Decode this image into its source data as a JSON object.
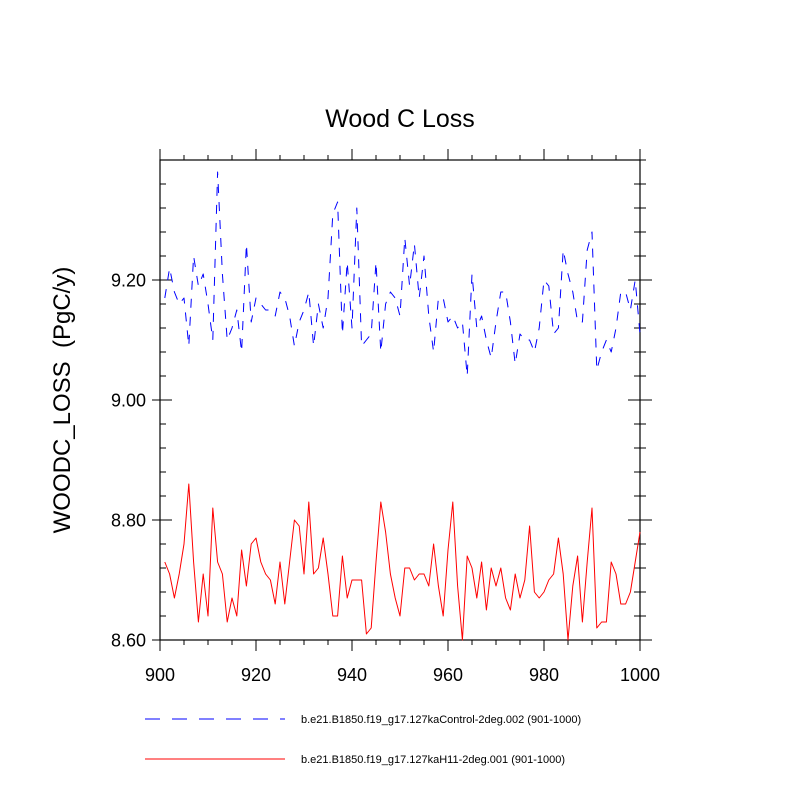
{
  "chart_data": {
    "type": "line",
    "title": "Wood C Loss",
    "xlabel": "",
    "ylabel": "WOODC_LOSS  (PgC/y)",
    "xlim": [
      900,
      1000
    ],
    "ylim": [
      8.6,
      9.4
    ],
    "x_ticks": [
      900,
      920,
      940,
      960,
      980,
      1000
    ],
    "x_tick_labels": [
      "900",
      "920",
      "940",
      "960",
      "980",
      "1000"
    ],
    "y_ticks": [
      8.6,
      8.8,
      9.0,
      9.2
    ],
    "y_tick_labels": [
      "8.60",
      "8.80",
      "9.00",
      "9.20"
    ],
    "x": [
      901,
      902,
      903,
      904,
      905,
      906,
      907,
      908,
      909,
      910,
      911,
      912,
      913,
      914,
      915,
      916,
      917,
      918,
      919,
      920,
      921,
      922,
      923,
      924,
      925,
      926,
      927,
      928,
      929,
      930,
      931,
      932,
      933,
      934,
      935,
      936,
      937,
      938,
      939,
      940,
      941,
      942,
      943,
      944,
      945,
      946,
      947,
      948,
      949,
      950,
      951,
      952,
      953,
      954,
      955,
      956,
      957,
      958,
      959,
      960,
      961,
      962,
      963,
      964,
      965,
      966,
      967,
      968,
      969,
      970,
      971,
      972,
      973,
      974,
      975,
      976,
      977,
      978,
      979,
      980,
      981,
      982,
      983,
      984,
      985,
      986,
      987,
      988,
      989,
      990,
      991,
      992,
      993,
      994,
      995,
      996,
      997,
      998,
      999,
      1000
    ],
    "series": [
      {
        "name": "b.e21.B1850.f19_g17.127kaControl-2deg.002 (901-1000)",
        "color": "#0000ff",
        "dash": "dashed",
        "values": [
          9.17,
          9.22,
          9.18,
          9.16,
          9.17,
          9.09,
          9.24,
          9.19,
          9.21,
          9.16,
          9.1,
          9.38,
          9.21,
          9.1,
          9.12,
          9.15,
          9.08,
          9.26,
          9.13,
          9.17,
          9.16,
          9.15,
          9.15,
          9.14,
          9.18,
          9.17,
          9.14,
          9.09,
          9.13,
          9.15,
          9.18,
          9.09,
          9.16,
          9.12,
          9.17,
          9.31,
          9.33,
          9.11,
          9.23,
          9.12,
          9.32,
          9.09,
          9.1,
          9.11,
          9.23,
          9.08,
          9.16,
          9.18,
          9.17,
          9.14,
          9.27,
          9.19,
          9.26,
          9.17,
          9.24,
          9.14,
          9.08,
          9.17,
          9.17,
          9.13,
          9.14,
          9.12,
          9.13,
          9.04,
          9.21,
          9.12,
          9.14,
          9.1,
          9.07,
          9.13,
          9.18,
          9.18,
          9.13,
          9.06,
          9.11,
          9.1,
          9.1,
          9.08,
          9.12,
          9.2,
          9.19,
          9.11,
          9.12,
          9.25,
          9.21,
          9.18,
          9.13,
          9.13,
          9.25,
          9.28,
          9.05,
          9.08,
          9.1,
          9.08,
          9.12,
          9.18,
          9.18,
          9.15,
          9.2,
          9.11
        ]
      },
      {
        "name": "b.e21.B1850.f19_g17.127kaH11-2deg.001 (901-1000)",
        "color": "#ff0000",
        "dash": "solid",
        "values": [
          8.73,
          8.71,
          8.67,
          8.71,
          8.76,
          8.86,
          8.73,
          8.63,
          8.71,
          8.64,
          8.82,
          8.73,
          8.71,
          8.63,
          8.67,
          8.64,
          8.75,
          8.69,
          8.76,
          8.77,
          8.73,
          8.71,
          8.7,
          8.66,
          8.73,
          8.66,
          8.73,
          8.8,
          8.79,
          8.71,
          8.83,
          8.71,
          8.72,
          8.77,
          8.71,
          8.64,
          8.64,
          8.74,
          8.67,
          8.7,
          8.7,
          8.7,
          8.61,
          8.62,
          8.73,
          8.83,
          8.78,
          8.71,
          8.67,
          8.64,
          8.72,
          8.72,
          8.7,
          8.71,
          8.71,
          8.69,
          8.76,
          8.69,
          8.64,
          8.75,
          8.83,
          8.69,
          8.6,
          8.74,
          8.72,
          8.67,
          8.73,
          8.65,
          8.72,
          8.69,
          8.72,
          8.67,
          8.65,
          8.71,
          8.67,
          8.7,
          8.79,
          8.68,
          8.67,
          8.68,
          8.7,
          8.71,
          8.77,
          8.71,
          8.6,
          8.69,
          8.74,
          8.63,
          8.73,
          8.82,
          8.62,
          8.63,
          8.63,
          8.73,
          8.71,
          8.66,
          8.66,
          8.68,
          8.73,
          8.78
        ]
      }
    ],
    "legend_position": "bottom"
  }
}
